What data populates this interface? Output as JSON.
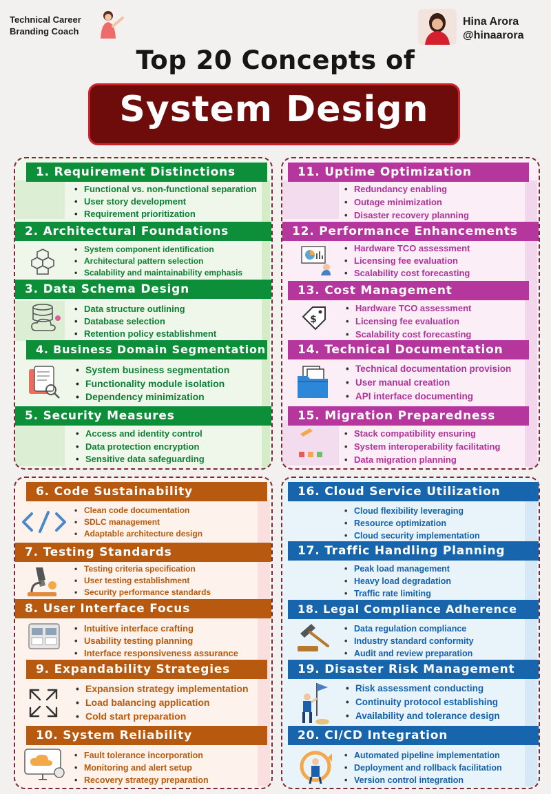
{
  "header": {
    "coach_line1": "Technical Career",
    "coach_line2": "Branding Coach",
    "author_name": "Hina Arora",
    "author_handle": "@hinaarora"
  },
  "title": {
    "line1": "Top 20 Concepts of",
    "line2": "System Design"
  },
  "sections": [
    {
      "title": "1. Requirement Distinctions",
      "items": [
        "Functional vs. non-functional separation",
        "User story development",
        "Requirement prioritization"
      ]
    },
    {
      "title": "2. Architectural Foundations",
      "items": [
        "System component identification",
        "Architectural pattern selection",
        "Scalability and maintainability emphasis"
      ]
    },
    {
      "title": "3. Data Schema Design",
      "items": [
        "Data structure outlining",
        "Database selection",
        "Retention policy establishment"
      ]
    },
    {
      "title": "4. Business Domain Segmentation",
      "items": [
        "System business segmentation",
        "Functionality module isolation",
        "Dependency minimization"
      ]
    },
    {
      "title": "5. Security Measures",
      "items": [
        "Access and identity control",
        "Data protection encryption",
        "Sensitive data safeguarding"
      ]
    },
    {
      "title": "6. Code Sustainability",
      "items": [
        "Clean code documentation",
        "SDLC management",
        "Adaptable architecture design"
      ]
    },
    {
      "title": "7. Testing Standards",
      "items": [
        "Testing criteria specification",
        "User testing establishment",
        "Security performance standards"
      ]
    },
    {
      "title": "8. User Interface Focus",
      "items": [
        "Intuitive interface crafting",
        "Usability testing planning",
        "Interface responsiveness assurance"
      ]
    },
    {
      "title": "9. Expandability Strategies",
      "items": [
        "Expansion strategy implementation",
        "Load balancing application",
        "Cold start preparation"
      ]
    },
    {
      "title": "10. System Reliability",
      "items": [
        "Fault tolerance incorporation",
        "Monitoring and alert setup",
        "Recovery strategy preparation"
      ]
    },
    {
      "title": "11. Uptime Optimization",
      "items": [
        "Redundancy enabling",
        "Outage minimization",
        "Disaster recovery planning"
      ]
    },
    {
      "title": "12. Performance Enhancements",
      "items": [
        "Hardware TCO assessment",
        "Licensing fee evaluation",
        "Scalability cost forecasting"
      ]
    },
    {
      "title": "13. Cost Management",
      "items": [
        "Hardware TCO assessment",
        "Licensing fee evaluation",
        "Scalability cost forecasting"
      ]
    },
    {
      "title": "14. Technical Documentation",
      "items": [
        "Technical documentation provision",
        "User manual creation",
        "API interface documenting"
      ]
    },
    {
      "title": "15. Migration Preparedness",
      "items": [
        "Stack compatibility ensuring",
        "System interoperability facilitating",
        "Data migration planning"
      ]
    },
    {
      "title": "16. Cloud Service Utilization",
      "items": [
        "Cloud flexibility leveraging",
        "Resource optimization",
        "Cloud security implementation"
      ]
    },
    {
      "title": "17. Traffic Handling Planning",
      "items": [
        "Peak load management",
        "Heavy load degradation",
        "Traffic rate limiting"
      ]
    },
    {
      "title": "18. Legal Compliance Adherence",
      "items": [
        "Data regulation compliance",
        "Industry standard conformity",
        "Audit and review preparation"
      ]
    },
    {
      "title": "19. Disaster Risk Management",
      "items": [
        "Risk assessment conducting",
        "Continuity protocol establishing",
        "Availability and tolerance design"
      ]
    },
    {
      "title": "20. CI/CD Integration",
      "items": [
        "Automated pipeline implementation",
        "Deployment and rollback facilitation",
        "Version control integration"
      ]
    }
  ],
  "colors": {
    "green": "#0d8f3a",
    "pink": "#b5369d",
    "orange": "#b7590f",
    "blue": "#1766ad",
    "title_box": "#6e0b0b"
  }
}
